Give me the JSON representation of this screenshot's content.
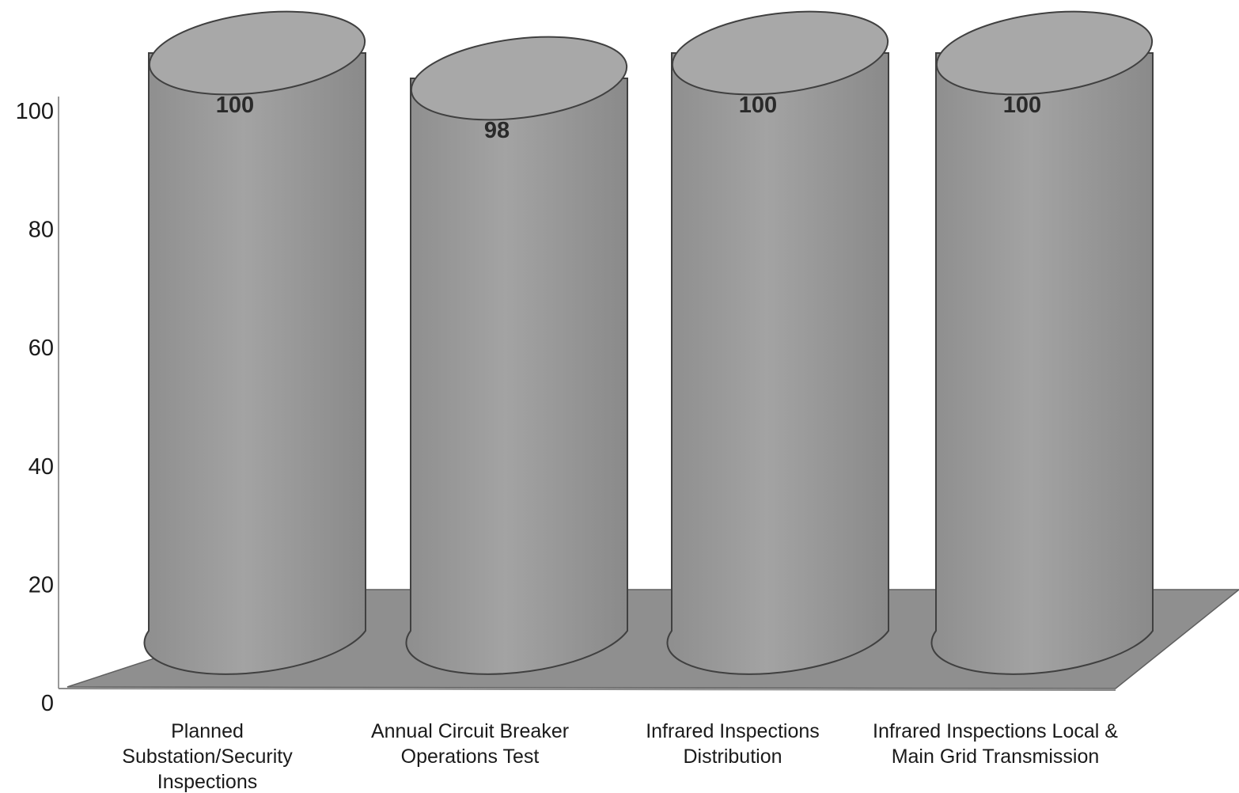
{
  "chart_data": {
    "type": "bar",
    "style": "3d-cylinder",
    "categories": [
      [
        "Planned",
        "Substation/Security",
        "Inspections"
      ],
      [
        "Annual Circuit Breaker",
        "Operations Test"
      ],
      [
        "Infrared Inspections",
        "Distribution"
      ],
      [
        "Infrared Inspections Local &",
        "Main Grid Transmission"
      ]
    ],
    "values": [
      100,
      98,
      100,
      100
    ],
    "data_labels": [
      "100",
      "98",
      "100",
      "100"
    ],
    "yticks": [
      0,
      20,
      40,
      60,
      80,
      100
    ],
    "ylim": [
      0,
      100
    ],
    "grid": false,
    "colors": {
      "cylinder": "#9c9c9c",
      "cylinder_top": "#a8a8a8",
      "outline": "#404040",
      "floor": "#8f8f8f",
      "axis": "#777777"
    }
  }
}
